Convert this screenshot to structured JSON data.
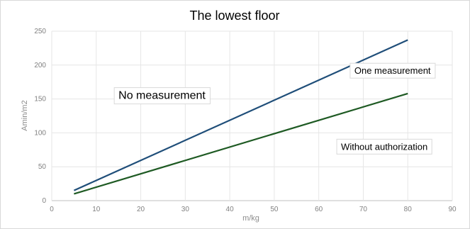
{
  "chart_data": {
    "type": "line",
    "title": "The lowest floor",
    "xlabel": "m/kg",
    "ylabel": "Amin/m2",
    "xlim": [
      0,
      90
    ],
    "ylim": [
      0,
      250
    ],
    "x_ticks": [
      0,
      10,
      20,
      30,
      40,
      50,
      60,
      70,
      80,
      90
    ],
    "y_ticks": [
      0,
      50,
      100,
      150,
      200,
      250
    ],
    "grid": true,
    "legend": "none",
    "series": [
      {
        "x": [
          5,
          80
        ],
        "y": [
          15,
          237
        ],
        "color": "#1f4e79"
      },
      {
        "x": [
          5,
          80
        ],
        "y": [
          10,
          158
        ],
        "color": "#1e5a23"
      }
    ],
    "annotations": [
      {
        "text": "No measurement",
        "x": 15,
        "y": 150,
        "boxed": true,
        "size": "big"
      },
      {
        "text": "One measurement",
        "x": 68,
        "y": 187,
        "boxed": true,
        "size": "normal"
      },
      {
        "text": "Without authorization",
        "x": 65,
        "y": 75,
        "boxed": true,
        "size": "normal"
      }
    ]
  }
}
